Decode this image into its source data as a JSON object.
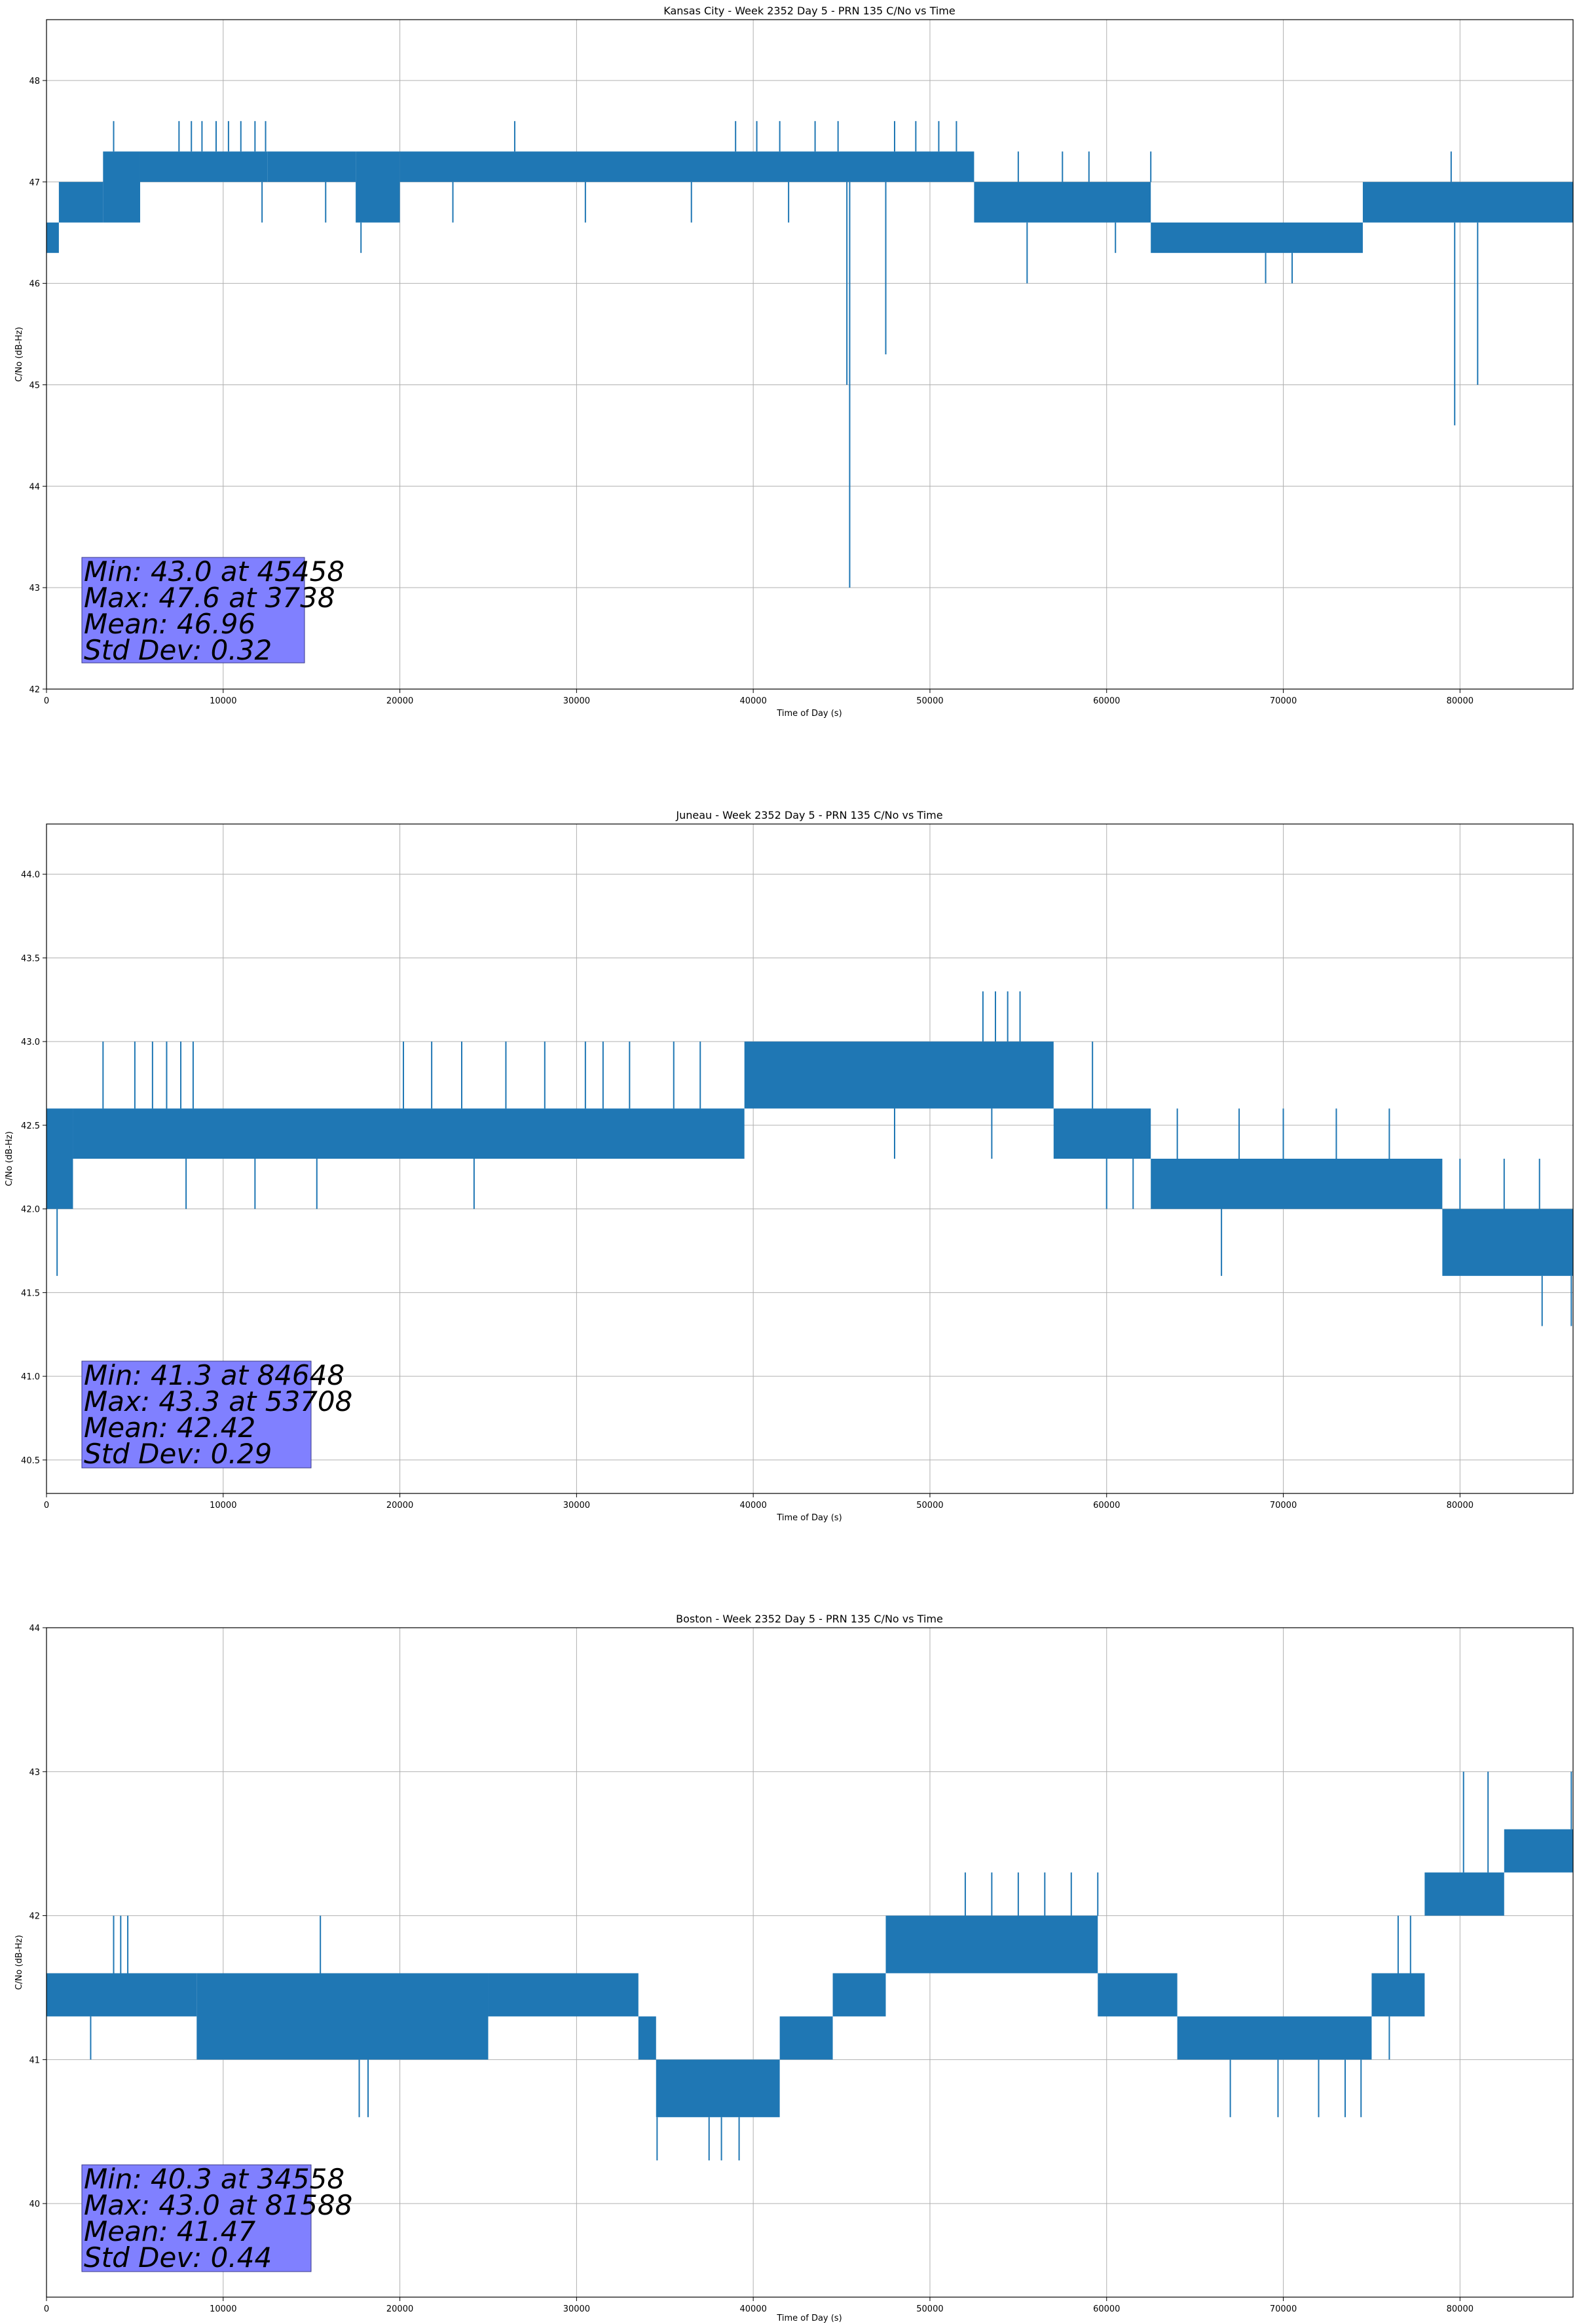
{
  "colors": {
    "series": "#1f77b4",
    "grid": "#b0b0b0",
    "stats_box_fill": "#8080ff",
    "stats_box_edge": "#3a3a8a",
    "axes": "#000000"
  },
  "chart_data": [
    {
      "type": "line",
      "title": "Kansas City - Week 2352 Day 5 - PRN 135 C/No vs Time",
      "xlabel": "Time of Day (s)",
      "ylabel": "C/No (dB-Hz)",
      "xlim": [
        0,
        86400
      ],
      "ylim": [
        42,
        48.6
      ],
      "grid": true,
      "x_ticks": [
        0,
        10000,
        20000,
        30000,
        40000,
        50000,
        60000,
        70000,
        80000
      ],
      "x_tick_labels": [
        "0",
        "10000",
        "20000",
        "30000",
        "40000",
        "50000",
        "60000",
        "70000",
        "80000"
      ],
      "y_ticks": [
        42,
        43,
        44,
        45,
        46,
        47,
        48
      ],
      "y_tick_labels": [
        "42",
        "43",
        "44",
        "45",
        "46",
        "47",
        "48"
      ],
      "series": [
        {
          "name": "PRN 135 C/No",
          "bands": [
            {
              "x": [
                0,
                700
              ],
              "lo": 46.3,
              "hi": 46.6
            },
            {
              "x": [
                700,
                3200
              ],
              "lo": 46.6,
              "hi": 47.0
            },
            {
              "x": [
                3200,
                5300
              ],
              "lo": 46.6,
              "hi": 47.3
            },
            {
              "x": [
                5300,
                12500
              ],
              "lo": 47.0,
              "hi": 47.3
            },
            {
              "x": [
                12500,
                17500
              ],
              "lo": 47.0,
              "hi": 47.3
            },
            {
              "x": [
                17500,
                20000
              ],
              "lo": 46.6,
              "hi": 47.3
            },
            {
              "x": [
                20000,
                52500
              ],
              "lo": 47.0,
              "hi": 47.3
            },
            {
              "x": [
                52500,
                62500
              ],
              "lo": 46.6,
              "hi": 47.0
            },
            {
              "x": [
                62500,
                74500
              ],
              "lo": 46.3,
              "hi": 46.6
            },
            {
              "x": [
                74500,
                86400
              ],
              "lo": 46.6,
              "hi": 47.0
            }
          ],
          "spikes_up": [
            {
              "x": 3800,
              "y": 47.6
            },
            {
              "x": 7500,
              "y": 47.6
            },
            {
              "x": 8200,
              "y": 47.6
            },
            {
              "x": 8800,
              "y": 47.6
            },
            {
              "x": 9600,
              "y": 47.6
            },
            {
              "x": 10300,
              "y": 47.6
            },
            {
              "x": 11000,
              "y": 47.6
            },
            {
              "x": 11800,
              "y": 47.6
            },
            {
              "x": 12400,
              "y": 47.6
            },
            {
              "x": 26500,
              "y": 47.6
            },
            {
              "x": 39000,
              "y": 47.6
            },
            {
              "x": 40200,
              "y": 47.6
            },
            {
              "x": 41500,
              "y": 47.6
            },
            {
              "x": 43500,
              "y": 47.6
            },
            {
              "x": 44800,
              "y": 47.6
            },
            {
              "x": 48000,
              "y": 47.6
            },
            {
              "x": 49200,
              "y": 47.6
            },
            {
              "x": 50500,
              "y": 47.6
            },
            {
              "x": 51500,
              "y": 47.6
            },
            {
              "x": 55000,
              "y": 47.3
            },
            {
              "x": 57500,
              "y": 47.3
            },
            {
              "x": 59000,
              "y": 47.3
            },
            {
              "x": 62500,
              "y": 47.3
            },
            {
              "x": 79500,
              "y": 47.3
            }
          ],
          "spikes_down": [
            {
              "x": 45458,
              "y": 43.0
            },
            {
              "x": 45300,
              "y": 45.0
            },
            {
              "x": 47500,
              "y": 45.3
            },
            {
              "x": 79700,
              "y": 44.6
            },
            {
              "x": 81000,
              "y": 45.0
            },
            {
              "x": 55500,
              "y": 46.0
            },
            {
              "x": 69000,
              "y": 46.0
            },
            {
              "x": 70500,
              "y": 46.0
            },
            {
              "x": 17800,
              "y": 46.3
            },
            {
              "x": 12200,
              "y": 46.6
            },
            {
              "x": 15800,
              "y": 46.6
            },
            {
              "x": 23000,
              "y": 46.6
            },
            {
              "x": 30500,
              "y": 46.6
            },
            {
              "x": 36500,
              "y": 46.6
            },
            {
              "x": 42000,
              "y": 46.6
            },
            {
              "x": 60500,
              "y": 46.3
            },
            {
              "x": 66000,
              "y": 46.3
            }
          ]
        }
      ],
      "stats": {
        "min_line": "Min: 43.0 at 45458",
        "max_line": "Max: 47.6 at 3738",
        "mean_line": "Mean: 46.96",
        "std_line": "Std Dev: 0.32"
      }
    },
    {
      "type": "line",
      "title": "Juneau - Week 2352 Day 5 - PRN 135 C/No vs Time",
      "xlabel": "Time of Day (s)",
      "ylabel": "C/No (dB-Hz)",
      "xlim": [
        0,
        86400
      ],
      "ylim": [
        40.3,
        44.3
      ],
      "grid": true,
      "x_ticks": [
        0,
        10000,
        20000,
        30000,
        40000,
        50000,
        60000,
        70000,
        80000
      ],
      "x_tick_labels": [
        "0",
        "10000",
        "20000",
        "30000",
        "40000",
        "50000",
        "60000",
        "70000",
        "80000"
      ],
      "y_ticks": [
        40.5,
        41.0,
        41.5,
        42.0,
        42.5,
        43.0,
        43.5,
        44.0
      ],
      "y_tick_labels": [
        "40.5",
        "41.0",
        "41.5",
        "42.0",
        "42.5",
        "43.0",
        "43.5",
        "44.0"
      ],
      "series": [
        {
          "name": "PRN 135 C/No",
          "bands": [
            {
              "x": [
                0,
                1500
              ],
              "lo": 42.0,
              "hi": 42.6
            },
            {
              "x": [
                1500,
                39500
              ],
              "lo": 42.3,
              "hi": 42.6
            },
            {
              "x": [
                39500,
                57000
              ],
              "lo": 42.6,
              "hi": 43.0
            },
            {
              "x": [
                57000,
                62500
              ],
              "lo": 42.3,
              "hi": 42.6
            },
            {
              "x": [
                62500,
                79000
              ],
              "lo": 42.0,
              "hi": 42.3
            },
            {
              "x": [
                79000,
                86400
              ],
              "lo": 41.6,
              "hi": 42.0
            }
          ],
          "spikes_up": [
            {
              "x": 3200,
              "y": 43.0
            },
            {
              "x": 5000,
              "y": 43.0
            },
            {
              "x": 6000,
              "y": 43.0
            },
            {
              "x": 6800,
              "y": 43.0
            },
            {
              "x": 7600,
              "y": 43.0
            },
            {
              "x": 8300,
              "y": 43.0
            },
            {
              "x": 20200,
              "y": 43.0
            },
            {
              "x": 21800,
              "y": 43.0
            },
            {
              "x": 23500,
              "y": 43.0
            },
            {
              "x": 26000,
              "y": 43.0
            },
            {
              "x": 28200,
              "y": 43.0
            },
            {
              "x": 30500,
              "y": 43.0
            },
            {
              "x": 31500,
              "y": 43.0
            },
            {
              "x": 33000,
              "y": 43.0
            },
            {
              "x": 35500,
              "y": 43.0
            },
            {
              "x": 37000,
              "y": 43.0
            },
            {
              "x": 53000,
              "y": 43.3
            },
            {
              "x": 53708,
              "y": 43.3
            },
            {
              "x": 54400,
              "y": 43.3
            },
            {
              "x": 55100,
              "y": 43.3
            },
            {
              "x": 59200,
              "y": 43.0
            },
            {
              "x": 64000,
              "y": 42.6
            },
            {
              "x": 67500,
              "y": 42.6
            },
            {
              "x": 70000,
              "y": 42.6
            },
            {
              "x": 73000,
              "y": 42.6
            },
            {
              "x": 76000,
              "y": 42.6
            },
            {
              "x": 80000,
              "y": 42.3
            },
            {
              "x": 82500,
              "y": 42.3
            },
            {
              "x": 84500,
              "y": 42.3
            }
          ],
          "spikes_down": [
            {
              "x": 600,
              "y": 41.6
            },
            {
              "x": 66500,
              "y": 41.6
            },
            {
              "x": 84648,
              "y": 41.3
            },
            {
              "x": 86300,
              "y": 41.3
            },
            {
              "x": 7900,
              "y": 42.0
            },
            {
              "x": 11800,
              "y": 42.0
            },
            {
              "x": 15300,
              "y": 42.0
            },
            {
              "x": 24200,
              "y": 42.0
            },
            {
              "x": 48000,
              "y": 42.3
            },
            {
              "x": 53500,
              "y": 42.3
            },
            {
              "x": 60000,
              "y": 42.0
            },
            {
              "x": 61500,
              "y": 42.0
            }
          ]
        }
      ],
      "stats": {
        "min_line": "Min: 41.3 at 84648",
        "max_line": "Max: 43.3 at 53708",
        "mean_line": "Mean: 42.42",
        "std_line": "Std Dev: 0.29"
      }
    },
    {
      "type": "line",
      "title": "Boston - Week 2352 Day 5 - PRN 135 C/No vs Time",
      "xlabel": "Time of Day (s)",
      "ylabel": "C/No (dB-Hz)",
      "xlim": [
        0,
        86400
      ],
      "ylim": [
        39.35,
        44
      ],
      "grid": true,
      "x_ticks": [
        0,
        10000,
        20000,
        30000,
        40000,
        50000,
        60000,
        70000,
        80000
      ],
      "x_tick_labels": [
        "0",
        "10000",
        "20000",
        "30000",
        "40000",
        "50000",
        "60000",
        "70000",
        "80000"
      ],
      "y_ticks": [
        40,
        41,
        42,
        43,
        44
      ],
      "y_tick_labels": [
        "40",
        "41",
        "42",
        "43",
        "44"
      ],
      "series": [
        {
          "name": "PRN 135 C/No",
          "bands": [
            {
              "x": [
                0,
                8500
              ],
              "lo": 41.3,
              "hi": 41.6
            },
            {
              "x": [
                8500,
                25000
              ],
              "lo": 41.0,
              "hi": 41.6
            },
            {
              "x": [
                25000,
                33500
              ],
              "lo": 41.3,
              "hi": 41.6
            },
            {
              "x": [
                33500,
                34500
              ],
              "lo": 41.0,
              "hi": 41.3
            },
            {
              "x": [
                34500,
                41500
              ],
              "lo": 40.6,
              "hi": 41.0
            },
            {
              "x": [
                41500,
                44500
              ],
              "lo": 41.0,
              "hi": 41.3
            },
            {
              "x": [
                44500,
                47500
              ],
              "lo": 41.3,
              "hi": 41.6
            },
            {
              "x": [
                47500,
                59500
              ],
              "lo": 41.6,
              "hi": 42.0
            },
            {
              "x": [
                59500,
                64000
              ],
              "lo": 41.3,
              "hi": 41.6
            },
            {
              "x": [
                64000,
                75000
              ],
              "lo": 41.0,
              "hi": 41.3
            },
            {
              "x": [
                75000,
                78000
              ],
              "lo": 41.3,
              "hi": 41.6
            },
            {
              "x": [
                78000,
                82500
              ],
              "lo": 42.0,
              "hi": 42.3
            },
            {
              "x": [
                82500,
                86400
              ],
              "lo": 42.3,
              "hi": 42.6
            }
          ],
          "spikes_up": [
            {
              "x": 3800,
              "y": 42.0
            },
            {
              "x": 4200,
              "y": 42.0
            },
            {
              "x": 4600,
              "y": 42.0
            },
            {
              "x": 15500,
              "y": 42.0
            },
            {
              "x": 47800,
              "y": 42.0
            },
            {
              "x": 48500,
              "y": 42.0
            },
            {
              "x": 49200,
              "y": 42.0
            },
            {
              "x": 52000,
              "y": 42.3
            },
            {
              "x": 53500,
              "y": 42.3
            },
            {
              "x": 55000,
              "y": 42.3
            },
            {
              "x": 56500,
              "y": 42.3
            },
            {
              "x": 58000,
              "y": 42.3
            },
            {
              "x": 59500,
              "y": 42.3
            },
            {
              "x": 76500,
              "y": 42.0
            },
            {
              "x": 77200,
              "y": 42.0
            },
            {
              "x": 80200,
              "y": 43.0
            },
            {
              "x": 81588,
              "y": 43.0
            },
            {
              "x": 82800,
              "y": 42.6
            },
            {
              "x": 84000,
              "y": 42.6
            },
            {
              "x": 86300,
              "y": 43.0
            }
          ],
          "spikes_down": [
            {
              "x": 2500,
              "y": 41.0
            },
            {
              "x": 17700,
              "y": 40.6
            },
            {
              "x": 18200,
              "y": 40.6
            },
            {
              "x": 34558,
              "y": 40.3
            },
            {
              "x": 37500,
              "y": 40.3
            },
            {
              "x": 38200,
              "y": 40.3
            },
            {
              "x": 39200,
              "y": 40.3
            },
            {
              "x": 67000,
              "y": 40.6
            },
            {
              "x": 69700,
              "y": 40.6
            },
            {
              "x": 72000,
              "y": 40.6
            },
            {
              "x": 73500,
              "y": 40.6
            },
            {
              "x": 74400,
              "y": 40.6
            },
            {
              "x": 76000,
              "y": 41.0
            },
            {
              "x": 22500,
              "y": 41.0
            },
            {
              "x": 28000,
              "y": 41.3
            }
          ]
        }
      ],
      "stats": {
        "min_line": "Min: 40.3 at 34558",
        "max_line": "Max: 43.0 at 81588",
        "mean_line": "Mean: 41.47",
        "std_line": "Std Dev: 0.44"
      }
    }
  ]
}
